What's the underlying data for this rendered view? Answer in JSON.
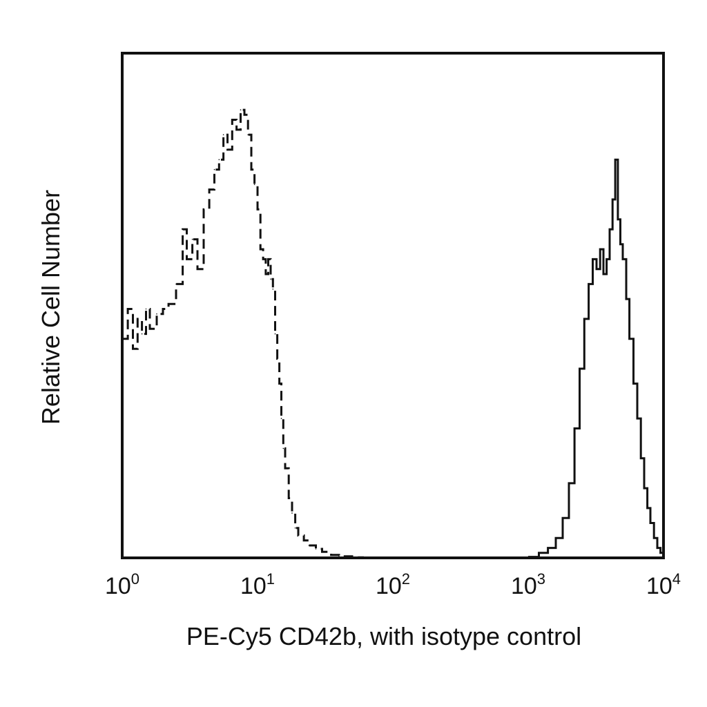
{
  "chart_data": {
    "type": "line",
    "title": "",
    "xlabel": "PE-Cy5 CD42b, with isotype control",
    "ylabel": "Relative Cell Number",
    "xscale": "log",
    "xlim": [
      1,
      10000
    ],
    "ylim": [
      0,
      100
    ],
    "grid": false,
    "legend": "none",
    "x_ticks": [
      {
        "value": 1,
        "base": "10",
        "exp": "0"
      },
      {
        "value": 10,
        "base": "10",
        "exp": "1"
      },
      {
        "value": 100,
        "base": "10",
        "exp": "2"
      },
      {
        "value": 1000,
        "base": "10",
        "exp": "3"
      },
      {
        "value": 10000,
        "base": "10",
        "exp": "4"
      }
    ],
    "series": [
      {
        "style": "dashed",
        "color": "#111111",
        "x": [
          1.0,
          1.1,
          1.2,
          1.3,
          1.4,
          1.5,
          1.6,
          1.8,
          2.0,
          2.2,
          2.5,
          2.8,
          3.0,
          3.3,
          3.6,
          4.0,
          4.4,
          4.8,
          5.2,
          5.6,
          6.0,
          6.5,
          7.0,
          7.5,
          8.0,
          8.5,
          9.0,
          9.5,
          10.0,
          10.5,
          11.0,
          11.5,
          12.0,
          12.5,
          13.0,
          13.5,
          14.0,
          14.5,
          15.0,
          15.5,
          16.0,
          17.0,
          18.0,
          19.0,
          20.0,
          22.0,
          24.0,
          27.0,
          30.0,
          35.0,
          40.0,
          50.0,
          60.0
        ],
        "y": [
          44,
          50,
          42,
          48,
          45,
          50,
          46,
          49,
          50,
          51,
          55,
          66,
          60,
          64,
          58,
          70,
          74,
          78,
          80,
          85,
          82,
          88,
          86,
          90,
          89,
          85,
          78,
          75,
          70,
          62,
          60,
          57,
          60,
          56,
          54,
          45,
          40,
          35,
          28,
          22,
          18,
          12,
          9,
          6,
          4.5,
          3.5,
          2.5,
          1.8,
          1.2,
          0.6,
          0.3,
          0.1,
          0
        ]
      },
      {
        "style": "solid",
        "color": "#111111",
        "x": [
          1000,
          1200,
          1400,
          1600,
          1800,
          2000,
          2200,
          2400,
          2600,
          2800,
          3000,
          3200,
          3400,
          3600,
          3800,
          4000,
          4200,
          4400,
          4600,
          4800,
          5000,
          5300,
          5600,
          6000,
          6400,
          6800,
          7200,
          7600,
          8000,
          8500,
          9000,
          9500,
          10000
        ],
        "y": [
          0.2,
          1,
          2,
          4,
          8,
          15,
          26,
          38,
          48,
          55,
          60,
          58,
          62,
          57,
          60,
          66,
          72,
          80,
          68,
          63,
          60,
          52,
          44,
          35,
          28,
          20,
          14,
          10,
          7,
          4,
          2,
          1,
          0.2
        ]
      }
    ]
  }
}
